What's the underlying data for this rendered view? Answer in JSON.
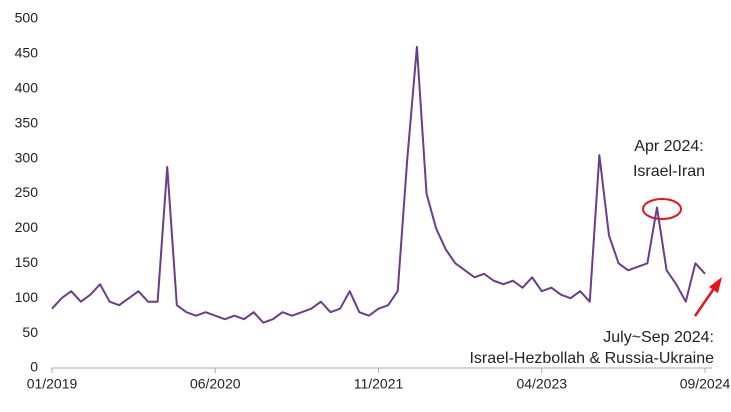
{
  "chart_data": {
    "type": "line",
    "x": [
      "01/2019",
      "02/2019",
      "03/2019",
      "04/2019",
      "05/2019",
      "06/2019",
      "07/2019",
      "08/2019",
      "09/2019",
      "10/2019",
      "11/2019",
      "12/2019",
      "01/2020",
      "02/2020",
      "03/2020",
      "04/2020",
      "05/2020",
      "06/2020",
      "07/2020",
      "08/2020",
      "09/2020",
      "10/2020",
      "11/2020",
      "12/2020",
      "01/2021",
      "02/2021",
      "03/2021",
      "04/2021",
      "05/2021",
      "06/2021",
      "07/2021",
      "08/2021",
      "09/2021",
      "10/2021",
      "11/2021",
      "12/2021",
      "01/2022",
      "02/2022",
      "03/2022",
      "04/2022",
      "05/2022",
      "06/2022",
      "07/2022",
      "08/2022",
      "09/2022",
      "10/2022",
      "11/2022",
      "12/2022",
      "01/2023",
      "02/2023",
      "03/2023",
      "04/2023",
      "05/2023",
      "06/2023",
      "07/2023",
      "08/2023",
      "09/2023",
      "10/2023",
      "11/2023",
      "12/2023",
      "01/2024",
      "02/2024",
      "03/2024",
      "04/2024",
      "05/2024",
      "06/2024",
      "07/2024",
      "08/2024",
      "09/2024"
    ],
    "series": [
      {
        "color": "#6b3d8a",
        "values": [
          85,
          100,
          110,
          95,
          105,
          120,
          95,
          90,
          100,
          110,
          95,
          95,
          288,
          90,
          80,
          75,
          80,
          75,
          70,
          75,
          70,
          80,
          65,
          70,
          80,
          75,
          80,
          85,
          95,
          80,
          85,
          110,
          80,
          75,
          85,
          90,
          110,
          300,
          460,
          250,
          200,
          170,
          150,
          140,
          130,
          135,
          125,
          120,
          125,
          115,
          130,
          110,
          115,
          105,
          100,
          110,
          95,
          305,
          190,
          150,
          140,
          145,
          150,
          230,
          140,
          120,
          95,
          150,
          135
        ]
      }
    ],
    "xticks": [
      "01/2019",
      "06/2020",
      "11/2021",
      "04/2023",
      "09/2024"
    ],
    "ylim": [
      0,
      500
    ],
    "yticks": [
      0,
      50,
      100,
      150,
      200,
      250,
      300,
      350,
      400,
      450,
      500
    ],
    "grid": false,
    "annotations": [
      [
        "Apr 2024:",
        "Israel-Iran"
      ],
      [
        "July~Sep 2024:",
        "Israel-Hezbollah & Russia-Ukraine"
      ]
    ]
  }
}
